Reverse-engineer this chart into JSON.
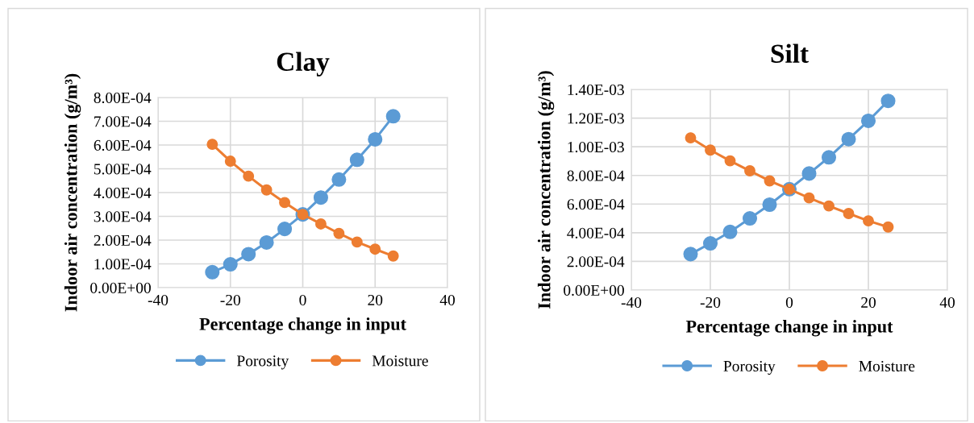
{
  "chart_data": [
    {
      "type": "line",
      "title": "Clay",
      "xlabel": "Percentage change in input",
      "ylabel": "Indoor air concentration (g/m³)",
      "x": [
        -25,
        -20,
        -15,
        -10,
        -5,
        0,
        5,
        10,
        15,
        20,
        25
      ],
      "xlim": [
        -40,
        40
      ],
      "xticks": [
        -40,
        -20,
        0,
        20,
        40
      ],
      "ylim": [
        0,
        0.0008
      ],
      "yticks": [
        {
          "value": 0,
          "label": "0.00E+00"
        },
        {
          "value": 0.0001,
          "label": "1.00E-04"
        },
        {
          "value": 0.0002,
          "label": "2.00E-04"
        },
        {
          "value": 0.0003,
          "label": "3.00E-04"
        },
        {
          "value": 0.0004,
          "label": "4.00E-04"
        },
        {
          "value": 0.0005,
          "label": "5.00E-04"
        },
        {
          "value": 0.0006,
          "label": "6.00E-04"
        },
        {
          "value": 0.0007,
          "label": "7.00E-04"
        },
        {
          "value": 0.0008,
          "label": "8.00E-04"
        }
      ],
      "grid": true,
      "legend": "bottom",
      "marker": "circle",
      "line_style": "solid",
      "series": [
        {
          "name": "Porosity",
          "color": "#5b9bd5",
          "values": [
            6.5e-05,
            9.8e-05,
            0.000141,
            0.00019,
            0.000247,
            0.000308,
            0.000379,
            0.000455,
            0.000538,
            0.000624,
            0.000721
          ]
        },
        {
          "name": "Moisture",
          "color": "#ed7d31",
          "values": [
            0.000603,
            0.000532,
            0.000469,
            0.000411,
            0.000358,
            0.000308,
            0.000268,
            0.000228,
            0.000192,
            0.000162,
            0.000133
          ]
        }
      ]
    },
    {
      "type": "line",
      "title": "Silt",
      "xlabel": "Percentage change in input",
      "ylabel": "Indoor air concentration (g/m³)",
      "x": [
        -25,
        -20,
        -15,
        -10,
        -5,
        0,
        5,
        10,
        15,
        20,
        25
      ],
      "xlim": [
        -40,
        40
      ],
      "xticks": [
        -40,
        -20,
        0,
        20,
        40
      ],
      "ylim": [
        0,
        0.0014
      ],
      "yticks": [
        {
          "value": 0,
          "label": "0.00E+00"
        },
        {
          "value": 0.0002,
          "label": "2.00E-04"
        },
        {
          "value": 0.0004,
          "label": "4.00E-04"
        },
        {
          "value": 0.0006,
          "label": "6.00E-04"
        },
        {
          "value": 0.0008,
          "label": "8.00E-04"
        },
        {
          "value": 0.001,
          "label": "1.00E-03"
        },
        {
          "value": 0.0012,
          "label": "1.20E-03"
        },
        {
          "value": 0.0014,
          "label": "1.40E-03"
        }
      ],
      "grid": true,
      "legend": "bottom",
      "marker": "circle",
      "line_style": "solid",
      "series": [
        {
          "name": "Porosity",
          "color": "#5b9bd5",
          "values": [
            0.000251,
            0.000326,
            0.000406,
            0.0005,
            0.000596,
            0.000704,
            0.000813,
            0.000926,
            0.001053,
            0.001181,
            0.00132
          ]
        },
        {
          "name": "Moisture",
          "color": "#ed7d31",
          "values": [
            0.001062,
            0.000977,
            0.000902,
            0.000832,
            0.000762,
            0.000704,
            0.000643,
            0.000587,
            0.000534,
            0.000483,
            0.00044
          ]
        }
      ]
    }
  ]
}
